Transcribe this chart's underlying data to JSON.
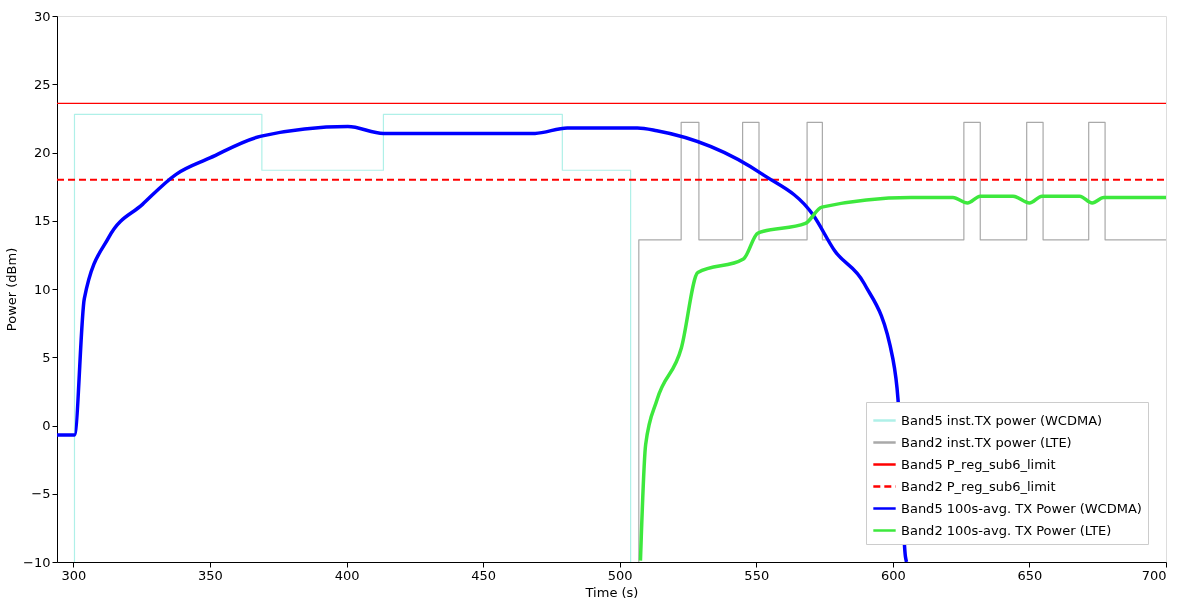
{
  "chart_data": {
    "type": "line",
    "xlabel": "Time (s)",
    "ylabel": "Power (dBm)",
    "xlim": [
      294,
      700
    ],
    "xticks": [
      300,
      350,
      400,
      450,
      500,
      550,
      600,
      650,
      700
    ],
    "ylim": [
      -10,
      30
    ],
    "yticks": [
      -10,
      -5,
      0,
      5,
      10,
      15,
      20,
      25,
      30
    ],
    "grid": false,
    "legend": "bottom right",
    "marker": "none",
    "series": [
      {
        "name": "Band5 inst.TX power (WCDMA)",
        "color": "#aff0e8",
        "line_style": "solid",
        "x": [
          300.4,
          300.4,
          369,
          369,
          413.5,
          413.5,
          479,
          479,
          504,
          504
        ],
        "values": [
          -10,
          22.8,
          22.8,
          18.7,
          18.7,
          22.8,
          22.8,
          18.7,
          18.7,
          -10
        ]
      },
      {
        "name": "Band2 inst.TX power (LTE)",
        "color": "#a9a9a9",
        "line_style": "solid",
        "x": [
          507,
          507,
          522.5,
          522.5,
          529,
          529,
          545,
          545,
          551,
          551,
          568.6,
          568.6,
          574.2,
          574.2,
          626,
          626,
          632,
          632,
          649,
          649,
          655,
          655,
          671.7,
          671.7,
          677.7,
          677.7,
          700
        ],
        "values": [
          -10,
          13.6,
          13.6,
          22.2,
          22.2,
          13.6,
          13.6,
          22.2,
          22.2,
          13.6,
          13.6,
          22.2,
          22.2,
          13.6,
          13.6,
          22.2,
          22.2,
          13.6,
          13.6,
          22.2,
          22.2,
          13.6,
          13.6,
          22.2,
          22.2,
          13.6,
          13.6
        ]
      },
      {
        "name": "Band5 P_reg_sub6_limit",
        "color": "#ff0000",
        "line_style": "solid",
        "x": [
          294,
          700
        ],
        "values": [
          23.6,
          23.6
        ]
      },
      {
        "name": "Band2 P_reg_sub6_limit",
        "color": "#ff0000",
        "line_style": "dashed",
        "x": [
          294,
          700
        ],
        "values": [
          18.0,
          18.0
        ]
      },
      {
        "name": "Band5 100s-avg. TX Power (WCDMA)",
        "color": "#0000ff",
        "line_style": "solid",
        "x": [
          294,
          300.4,
          304,
          313,
          325.3,
          337.6,
          350,
          368.8,
          400.5,
          413.5,
          469,
          480.8,
          506.5,
          513.6,
          552.3,
          570.9,
          578.7,
          589.5,
          600,
          601.9,
          604.6,
          605
        ],
        "values": [
          -0.7,
          -0.7,
          9.3,
          13.8,
          16.2,
          18.4,
          19.6,
          21.2,
          21.9,
          21.4,
          21.4,
          21.8,
          21.8,
          21.6,
          18.4,
          15.4,
          12.8,
          10.4,
          4.9,
          1.9,
          -9.6,
          -10
        ]
      },
      {
        "name": "Band2 100s-avg. TX Power (LTE)",
        "color": "#3de83d",
        "line_style": "solid",
        "x": [
          507.6,
          509.5,
          513.7,
          522.6,
          528.6,
          545.3,
          550.6,
          568,
          574,
          606.6,
          622,
          627.3,
          632,
          644,
          650,
          654.6,
          668.4,
          673,
          677.2,
          700
        ],
        "values": [
          -9.9,
          -1.4,
          1.9,
          5.7,
          11.2,
          12.2,
          14.1,
          14.8,
          16.0,
          16.7,
          16.7,
          16.3,
          16.8,
          16.8,
          16.3,
          16.8,
          16.8,
          16.3,
          16.7,
          16.7
        ]
      }
    ]
  }
}
